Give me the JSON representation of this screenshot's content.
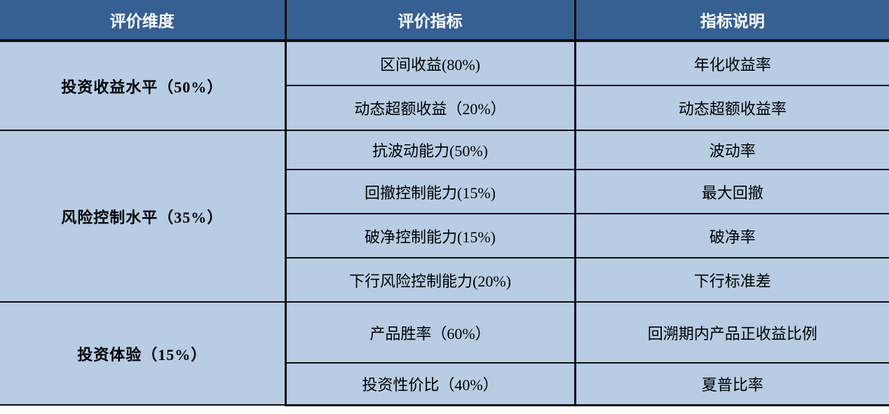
{
  "table": {
    "header": {
      "dimension": "评价维度",
      "indicator": "评价指标",
      "description": "指标说明"
    },
    "groups": [
      {
        "dimension": "投资收益水平（50%）",
        "rows": [
          {
            "indicator": "区间收益(80%)",
            "description": "年化收益率"
          },
          {
            "indicator": "动态超额收益（20%）",
            "description": "动态超额收益率"
          }
        ]
      },
      {
        "dimension": "风险控制水平（35%）",
        "rows": [
          {
            "indicator": "抗波动能力(50%)",
            "description": "波动率"
          },
          {
            "indicator": "回撤控制能力(15%)",
            "description": "最大回撤"
          },
          {
            "indicator": "破净控制能力(15%)",
            "description": "破净率"
          },
          {
            "indicator": "下行风险控制能力(20%)",
            "description": "下行标准差"
          }
        ]
      },
      {
        "dimension": "投资体验（15%）",
        "rows": [
          {
            "indicator": "产品胜率（60%）",
            "description": "回溯期内产品正收益比例"
          },
          {
            "indicator": "投资性价比（40%）",
            "description": "夏普比率"
          }
        ]
      }
    ],
    "colors": {
      "header_background": "#376092",
      "header_text": "#ffffff",
      "body_background": "#B8CCE4",
      "body_text": "#000000",
      "border": "#0d0d0d"
    }
  }
}
